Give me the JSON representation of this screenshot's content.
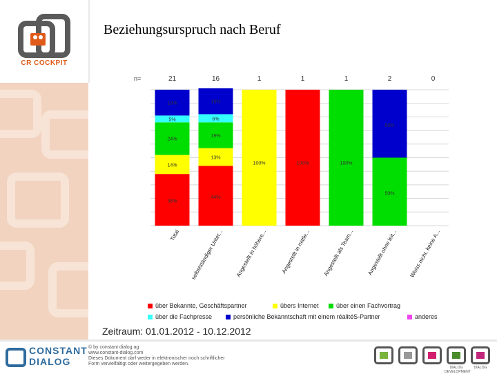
{
  "title": "Beziehungsurspruch nach Beruf",
  "period": "Zeitraum: 01.01.2012 - 10.12.2012",
  "logo_text": "CR COCKPIT",
  "footer": {
    "brand_line1": "CONSTANT",
    "brand_line2": "DIALOG",
    "copyright_lines": [
      "© by constant dialog ag",
      "www.constant-dialog.com",
      "Dieses Dokument darf weder in elektronischer noch schriftlicher",
      "Form vervielfältigt oder weitergegeben werden."
    ],
    "product_icons": [
      {
        "name": "product-icon-1",
        "label": "",
        "color": "#7ab43c"
      },
      {
        "name": "product-icon-2",
        "label": "",
        "color": "#999999"
      },
      {
        "name": "product-icon-3",
        "label": "",
        "color": "#d21e6e"
      },
      {
        "name": "product-icon-4",
        "label": "DIALOG DEVELOPMENT",
        "color": "#4a8c2a"
      },
      {
        "name": "product-icon-5",
        "label": "DIALOG",
        "color": "#c0267a"
      }
    ]
  },
  "chart_data": {
    "type": "bar",
    "stacked": true,
    "percent": true,
    "n_label": "n=",
    "categories": [
      "Total",
      "selbstständiger Unter...",
      "Angestellt in höhere...",
      "Angestellt in mittle...",
      "Angestellt als Team...",
      "Angestellt ohne leit...",
      "Weiss nicht, keine A..."
    ],
    "n": [
      "21",
      "16",
      "1",
      "1",
      "1",
      "2",
      "0"
    ],
    "series": [
      {
        "name": "über Bekannte, Geschäftspartner",
        "color": "#ff0000",
        "values": [
          38,
          44,
          0,
          100,
          0,
          0,
          0
        ],
        "labels": [
          "38%",
          "44%",
          "",
          "100%",
          "",
          "",
          ""
        ]
      },
      {
        "name": "übers Internet",
        "color": "#ffff00",
        "values": [
          14,
          13,
          100,
          0,
          0,
          0,
          0
        ],
        "labels": [
          "14%",
          "13%",
          "100%",
          "",
          "",
          "",
          ""
        ]
      },
      {
        "name": "über einen Fachvortrag",
        "color": "#00dd00",
        "values": [
          24,
          19,
          0,
          0,
          100,
          50,
          0
        ],
        "labels": [
          "24%",
          "19%",
          "",
          "",
          "100%",
          "50%",
          ""
        ]
      },
      {
        "name": "über die Fachpresse",
        "color": "#33ffff",
        "values": [
          5,
          6,
          0,
          0,
          0,
          0,
          0
        ],
        "labels": [
          "5%",
          "6%",
          "",
          "",
          "",
          "",
          ""
        ]
      },
      {
        "name": "persönliche Bekanntschaft mit einem réalitéS-Partner",
        "color": "#0000cc",
        "values": [
          19,
          19,
          0,
          0,
          0,
          50,
          0
        ],
        "labels": [
          "19%",
          "19%",
          "",
          "",
          "",
          "50%",
          ""
        ]
      },
      {
        "name": "anderes",
        "color": "#ee44ee",
        "values": [
          0,
          0,
          0,
          0,
          0,
          0,
          0
        ],
        "labels": [
          "",
          "",
          "",
          "",
          "",
          "",
          ""
        ]
      }
    ],
    "ylim": [
      0,
      100
    ],
    "grid": true,
    "legend_position": "bottom"
  }
}
